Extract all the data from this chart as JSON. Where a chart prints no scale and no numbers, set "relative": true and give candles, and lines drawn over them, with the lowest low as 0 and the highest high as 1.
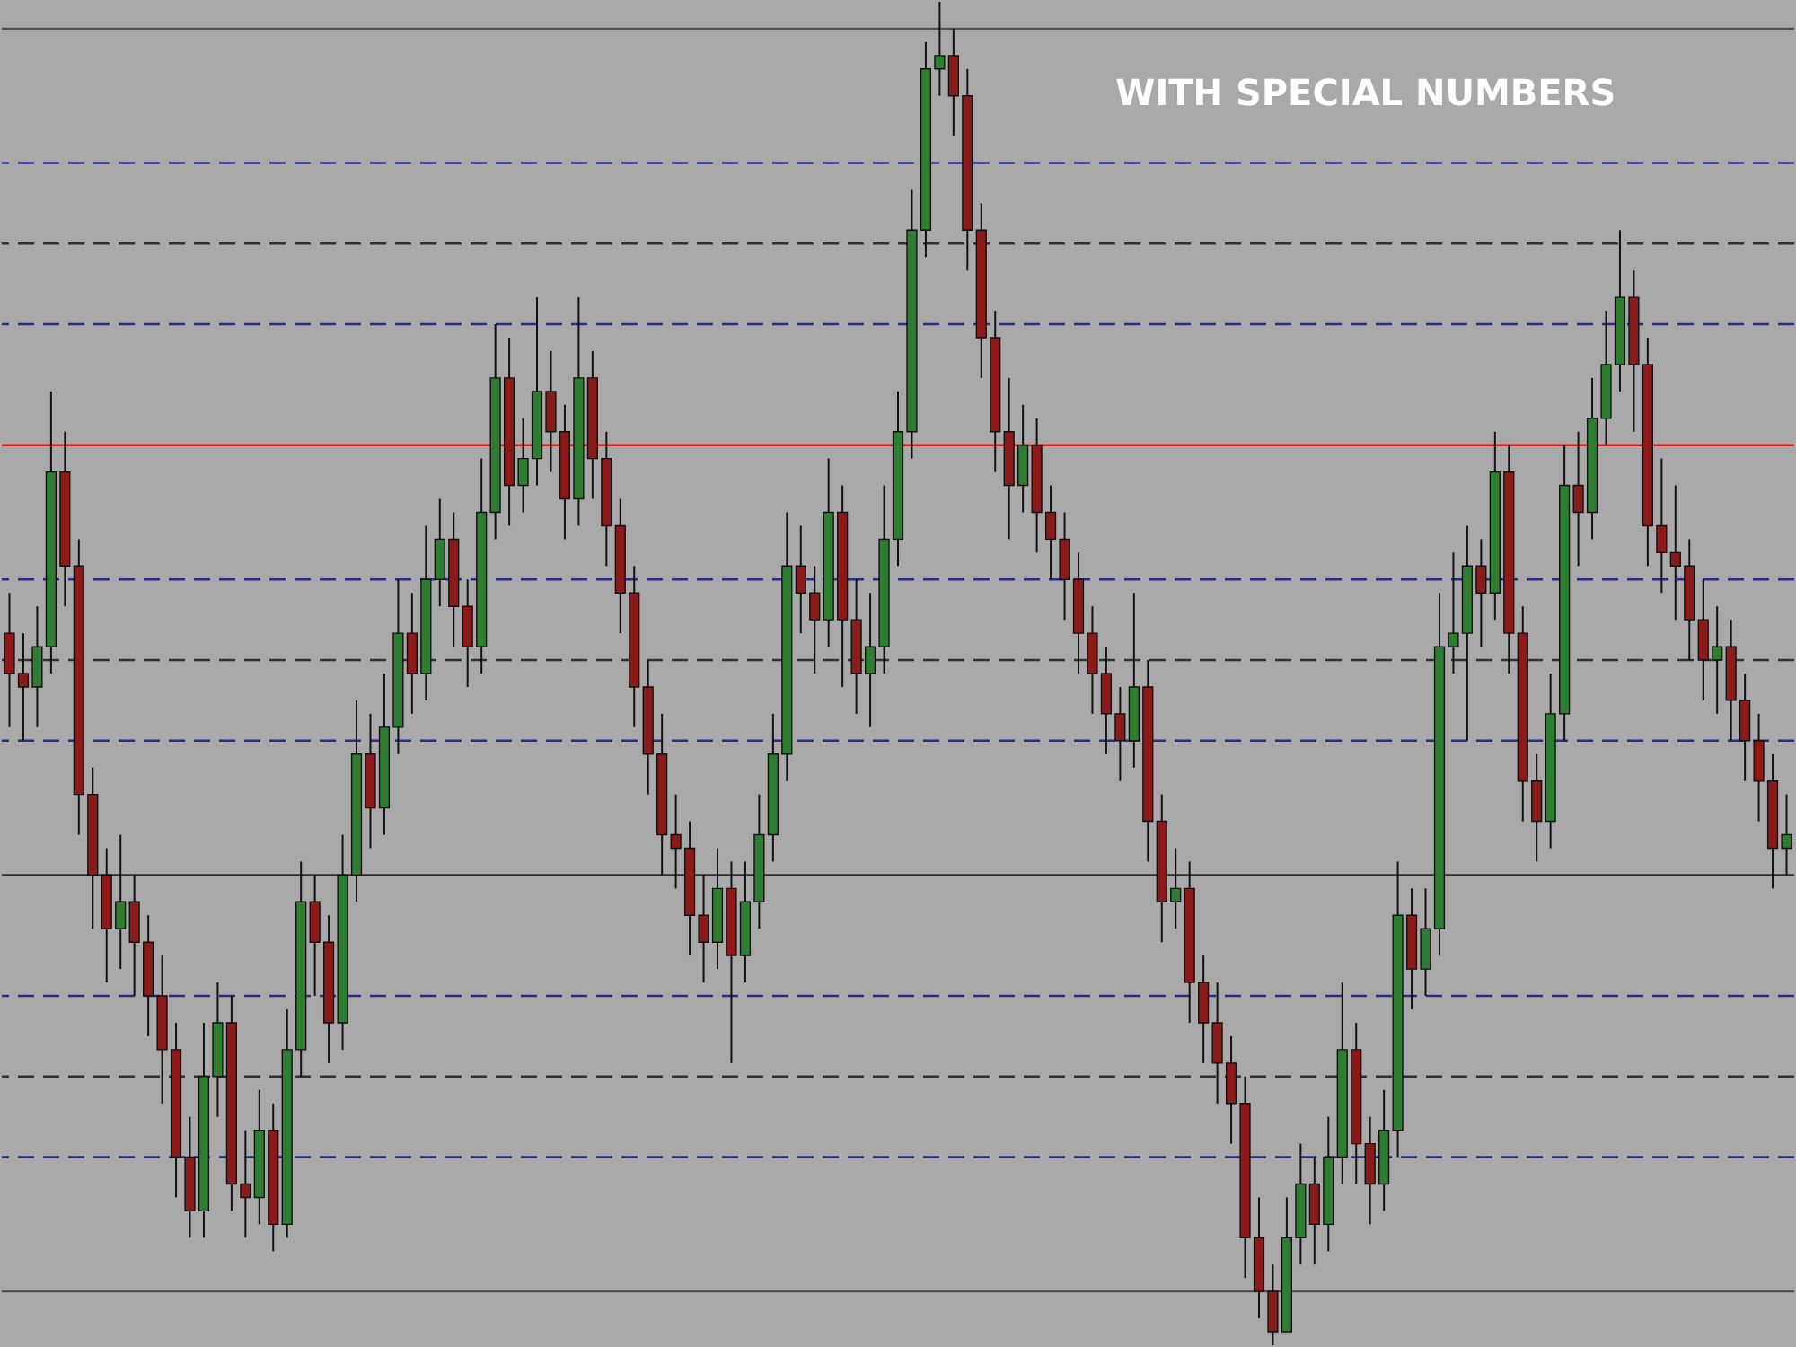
{
  "chart_data": {
    "type": "candlestick",
    "title": "WITH SPECIAL NUMBERS",
    "relative": true,
    "categories": [
      null,
      null,
      null,
      null,
      null,
      null,
      null,
      null,
      null,
      null,
      null,
      null,
      null,
      null,
      null,
      null,
      null,
      null,
      null,
      null,
      null,
      null,
      null,
      null,
      null,
      null,
      null,
      null,
      null,
      null,
      null,
      null,
      null,
      null,
      null,
      null,
      null,
      null,
      null,
      null,
      null,
      null,
      null,
      null,
      null,
      null,
      null,
      null,
      null,
      null,
      null,
      null,
      null,
      null,
      null,
      null,
      null,
      null,
      null,
      null,
      null,
      null,
      null,
      null,
      null,
      null,
      null,
      null,
      null,
      null,
      null,
      null,
      null,
      null,
      null,
      null,
      null,
      null,
      null,
      null,
      null,
      null,
      null,
      null,
      null,
      null,
      null,
      null,
      null,
      null,
      null,
      null,
      null,
      null,
      null,
      null,
      null,
      null,
      null,
      null,
      null,
      null,
      null,
      null,
      null,
      null,
      null,
      null,
      null,
      null,
      null,
      null,
      null,
      null,
      null,
      null,
      null,
      null,
      null,
      null,
      null,
      null,
      null,
      null,
      null,
      null,
      null,
      null,
      null
    ],
    "ohlc": [
      [
        0.53,
        0.56,
        0.46,
        0.5
      ],
      [
        0.5,
        0.53,
        0.45,
        0.49
      ],
      [
        0.49,
        0.55,
        0.46,
        0.52
      ],
      [
        0.52,
        0.71,
        0.5,
        0.65
      ],
      [
        0.65,
        0.68,
        0.55,
        0.58
      ],
      [
        0.58,
        0.6,
        0.38,
        0.41
      ],
      [
        0.41,
        0.43,
        0.31,
        0.35
      ],
      [
        0.35,
        0.37,
        0.27,
        0.31
      ],
      [
        0.31,
        0.38,
        0.28,
        0.33
      ],
      [
        0.33,
        0.35,
        0.26,
        0.3
      ],
      [
        0.3,
        0.32,
        0.23,
        0.26
      ],
      [
        0.26,
        0.29,
        0.18,
        0.22
      ],
      [
        0.22,
        0.24,
        0.11,
        0.14
      ],
      [
        0.14,
        0.17,
        0.08,
        0.1
      ],
      [
        0.1,
        0.24,
        0.08,
        0.2
      ],
      [
        0.2,
        0.27,
        0.17,
        0.24
      ],
      [
        0.24,
        0.26,
        0.1,
        0.12
      ],
      [
        0.12,
        0.16,
        0.08,
        0.11
      ],
      [
        0.11,
        0.19,
        0.09,
        0.16
      ],
      [
        0.16,
        0.18,
        0.07,
        0.09
      ],
      [
        0.09,
        0.25,
        0.08,
        0.22
      ],
      [
        0.22,
        0.36,
        0.2,
        0.33
      ],
      [
        0.33,
        0.35,
        0.26,
        0.3
      ],
      [
        0.3,
        0.32,
        0.21,
        0.24
      ],
      [
        0.24,
        0.38,
        0.22,
        0.35
      ],
      [
        0.35,
        0.48,
        0.33,
        0.44
      ],
      [
        0.44,
        0.47,
        0.37,
        0.4
      ],
      [
        0.4,
        0.5,
        0.38,
        0.46
      ],
      [
        0.46,
        0.57,
        0.44,
        0.53
      ],
      [
        0.53,
        0.56,
        0.47,
        0.5
      ],
      [
        0.5,
        0.61,
        0.48,
        0.57
      ],
      [
        0.57,
        0.63,
        0.55,
        0.6
      ],
      [
        0.6,
        0.62,
        0.52,
        0.55
      ],
      [
        0.55,
        0.57,
        0.49,
        0.52
      ],
      [
        0.52,
        0.66,
        0.5,
        0.62
      ],
      [
        0.62,
        0.76,
        0.6,
        0.72
      ],
      [
        0.72,
        0.75,
        0.61,
        0.64
      ],
      [
        0.64,
        0.69,
        0.62,
        0.66
      ],
      [
        0.66,
        0.78,
        0.64,
        0.71
      ],
      [
        0.71,
        0.74,
        0.65,
        0.68
      ],
      [
        0.68,
        0.7,
        0.6,
        0.63
      ],
      [
        0.63,
        0.78,
        0.61,
        0.72
      ],
      [
        0.72,
        0.74,
        0.63,
        0.66
      ],
      [
        0.66,
        0.68,
        0.58,
        0.61
      ],
      [
        0.61,
        0.63,
        0.53,
        0.56
      ],
      [
        0.56,
        0.58,
        0.46,
        0.49
      ],
      [
        0.49,
        0.51,
        0.41,
        0.44
      ],
      [
        0.44,
        0.47,
        0.35,
        0.38
      ],
      [
        0.38,
        0.41,
        0.34,
        0.37
      ],
      [
        0.37,
        0.39,
        0.29,
        0.32
      ],
      [
        0.32,
        0.35,
        0.27,
        0.3
      ],
      [
        0.3,
        0.37,
        0.28,
        0.34
      ],
      [
        0.34,
        0.36,
        0.21,
        0.29
      ],
      [
        0.29,
        0.36,
        0.27,
        0.33
      ],
      [
        0.33,
        0.41,
        0.31,
        0.38
      ],
      [
        0.38,
        0.47,
        0.36,
        0.44
      ],
      [
        0.44,
        0.62,
        0.42,
        0.58
      ],
      [
        0.58,
        0.61,
        0.53,
        0.56
      ],
      [
        0.56,
        0.58,
        0.5,
        0.54
      ],
      [
        0.54,
        0.66,
        0.52,
        0.62
      ],
      [
        0.62,
        0.64,
        0.49,
        0.54
      ],
      [
        0.54,
        0.57,
        0.47,
        0.5
      ],
      [
        0.5,
        0.56,
        0.46,
        0.52
      ],
      [
        0.52,
        0.64,
        0.5,
        0.6
      ],
      [
        0.6,
        0.71,
        0.58,
        0.68
      ],
      [
        0.68,
        0.86,
        0.66,
        0.83
      ],
      [
        0.83,
        0.97,
        0.81,
        0.95
      ],
      [
        0.95,
        1,
        0.93,
        0.96
      ],
      [
        0.96,
        0.98,
        0.9,
        0.93
      ],
      [
        0.93,
        0.95,
        0.8,
        0.83
      ],
      [
        0.83,
        0.85,
        0.72,
        0.75
      ],
      [
        0.75,
        0.77,
        0.65,
        0.68
      ],
      [
        0.68,
        0.72,
        0.6,
        0.64
      ],
      [
        0.64,
        0.7,
        0.62,
        0.67
      ],
      [
        0.67,
        0.69,
        0.59,
        0.62
      ],
      [
        0.62,
        0.64,
        0.57,
        0.6
      ],
      [
        0.6,
        0.62,
        0.54,
        0.57
      ],
      [
        0.57,
        0.59,
        0.5,
        0.53
      ],
      [
        0.53,
        0.55,
        0.47,
        0.5
      ],
      [
        0.5,
        0.52,
        0.44,
        0.47
      ],
      [
        0.47,
        0.49,
        0.42,
        0.45
      ],
      [
        0.45,
        0.56,
        0.43,
        0.49
      ],
      [
        0.49,
        0.51,
        0.36,
        0.39
      ],
      [
        0.39,
        0.41,
        0.3,
        0.33
      ],
      [
        0.33,
        0.37,
        0.31,
        0.34
      ],
      [
        0.34,
        0.36,
        0.24,
        0.27
      ],
      [
        0.27,
        0.29,
        0.21,
        0.24
      ],
      [
        0.24,
        0.27,
        0.18,
        0.21
      ],
      [
        0.21,
        0.23,
        0.15,
        0.18
      ],
      [
        0.18,
        0.2,
        0.05,
        0.08
      ],
      [
        0.08,
        0.11,
        0.02,
        0.04
      ],
      [
        0.04,
        0.06,
        0,
        0.01
      ],
      [
        0.01,
        0.11,
        0.01,
        0.08
      ],
      [
        0.08,
        0.15,
        0.06,
        0.12
      ],
      [
        0.12,
        0.14,
        0.06,
        0.09
      ],
      [
        0.09,
        0.17,
        0.07,
        0.14
      ],
      [
        0.14,
        0.27,
        0.12,
        0.22
      ],
      [
        0.22,
        0.24,
        0.12,
        0.15
      ],
      [
        0.15,
        0.17,
        0.09,
        0.12
      ],
      [
        0.12,
        0.19,
        0.1,
        0.16
      ],
      [
        0.16,
        0.36,
        0.14,
        0.32
      ],
      [
        0.32,
        0.34,
        0.25,
        0.28
      ],
      [
        0.28,
        0.34,
        0.26,
        0.31
      ],
      [
        0.31,
        0.56,
        0.29,
        0.52
      ],
      [
        0.52,
        0.59,
        0.5,
        0.53
      ],
      [
        0.53,
        0.61,
        0.45,
        0.58
      ],
      [
        0.58,
        0.6,
        0.52,
        0.56
      ],
      [
        0.56,
        0.68,
        0.54,
        0.65
      ],
      [
        0.65,
        0.67,
        0.5,
        0.53
      ],
      [
        0.53,
        0.55,
        0.39,
        0.42
      ],
      [
        0.42,
        0.44,
        0.36,
        0.39
      ],
      [
        0.39,
        0.5,
        0.37,
        0.47
      ],
      [
        0.47,
        0.67,
        0.45,
        0.64
      ],
      [
        0.64,
        0.68,
        0.58,
        0.62
      ],
      [
        0.62,
        0.72,
        0.6,
        0.69
      ],
      [
        0.69,
        0.77,
        0.67,
        0.73
      ],
      [
        0.73,
        0.83,
        0.71,
        0.78
      ],
      [
        0.78,
        0.8,
        0.68,
        0.73
      ],
      [
        0.73,
        0.75,
        0.58,
        0.61
      ],
      [
        0.61,
        0.66,
        0.56,
        0.59
      ],
      [
        0.59,
        0.64,
        0.54,
        0.58
      ],
      [
        0.58,
        0.6,
        0.51,
        0.54
      ],
      [
        0.54,
        0.57,
        0.48,
        0.51
      ],
      [
        0.51,
        0.55,
        0.47,
        0.52
      ],
      [
        0.52,
        0.54,
        0.45,
        0.48
      ],
      [
        0.48,
        0.5,
        0.42,
        0.45
      ],
      [
        0.45,
        0.47,
        0.39,
        0.42
      ],
      [
        0.42,
        0.44,
        0.34,
        0.37
      ],
      [
        0.37,
        0.41,
        0.35,
        0.38
      ]
    ],
    "colors": [
      "#8b1a1a",
      "#8b1a1a",
      "#2f7d32",
      "#2f7d32",
      "#8b1a1a",
      "#8b1a1a",
      "#8b1a1a",
      "#8b1a1a",
      "#2f7d32",
      "#8b1a1a",
      "#8b1a1a",
      "#8b1a1a",
      "#8b1a1a",
      "#8b1a1a",
      "#2f7d32",
      "#2f7d32",
      "#8b1a1a",
      "#8b1a1a",
      "#2f7d32",
      "#8b1a1a",
      "#2f7d32",
      "#2f7d32",
      "#8b1a1a",
      "#8b1a1a",
      "#2f7d32",
      "#2f7d32",
      "#8b1a1a",
      "#2f7d32",
      "#2f7d32",
      "#8b1a1a",
      "#2f7d32",
      "#2f7d32",
      "#8b1a1a",
      "#8b1a1a",
      "#2f7d32",
      "#2f7d32",
      "#8b1a1a",
      "#2f7d32",
      "#2f7d32",
      "#8b1a1a",
      "#8b1a1a",
      "#2f7d32",
      "#8b1a1a",
      "#8b1a1a",
      "#8b1a1a",
      "#8b1a1a",
      "#8b1a1a",
      "#8b1a1a",
      "#8b1a1a",
      "#8b1a1a",
      "#8b1a1a",
      "#2f7d32",
      "#8b1a1a",
      "#2f7d32",
      "#2f7d32",
      "#2f7d32",
      "#2f7d32",
      "#8b1a1a",
      "#8b1a1a",
      "#2f7d32",
      "#8b1a1a",
      "#8b1a1a",
      "#2f7d32",
      "#2f7d32",
      "#2f7d32",
      "#2f7d32",
      "#2f7d32",
      "#2f7d32",
      "#8b1a1a",
      "#8b1a1a",
      "#8b1a1a",
      "#8b1a1a",
      "#8b1a1a",
      "#2f7d32",
      "#8b1a1a",
      "#8b1a1a",
      "#8b1a1a",
      "#8b1a1a",
      "#8b1a1a",
      "#8b1a1a",
      "#8b1a1a",
      "#2f7d32",
      "#8b1a1a",
      "#8b1a1a",
      "#2f7d32",
      "#8b1a1a",
      "#8b1a1a",
      "#8b1a1a",
      "#8b1a1a",
      "#8b1a1a",
      "#8b1a1a",
      "#8b1a1a",
      "#2f7d32",
      "#2f7d32",
      "#8b1a1a",
      "#2f7d32",
      "#2f7d32",
      "#8b1a1a",
      "#8b1a1a",
      "#2f7d32",
      "#2f7d32",
      "#8b1a1a",
      "#2f7d32",
      "#2f7d32",
      "#2f7d32",
      "#2f7d32",
      "#8b1a1a",
      "#2f7d32",
      "#8b1a1a",
      "#8b1a1a",
      "#8b1a1a",
      "#2f7d32",
      "#2f7d32",
      "#8b1a1a",
      "#2f7d32",
      "#2f7d32",
      "#2f7d32",
      "#8b1a1a",
      "#8b1a1a",
      "#8b1a1a",
      "#8b1a1a",
      "#8b1a1a",
      "#8b1a1a",
      "#2f7d32",
      "#8b1a1a",
      "#8b1a1a",
      "#8b1a1a",
      "#8b1a1a",
      "#2f7d32"
    ],
    "ref_lines": [
      {
        "axis": "y",
        "value": 0.98,
        "color": "#505050",
        "line_style": "solid"
      },
      {
        "axis": "y",
        "value": 0.88,
        "color": "#2a2a8a",
        "line_style": "dashed"
      },
      {
        "axis": "y",
        "value": 0.82,
        "color": "#303030",
        "line_style": "dashed"
      },
      {
        "axis": "y",
        "value": 0.76,
        "color": "#2a2a8a",
        "line_style": "dashed"
      },
      {
        "axis": "y",
        "value": 0.67,
        "color": "#d02020",
        "line_style": "solid"
      },
      {
        "axis": "y",
        "value": 0.57,
        "color": "#2a2a8a",
        "line_style": "dashed"
      },
      {
        "axis": "y",
        "value": 0.51,
        "color": "#303030",
        "line_style": "dashed"
      },
      {
        "axis": "y",
        "value": 0.45,
        "color": "#2a2a8a",
        "line_style": "dashed"
      },
      {
        "axis": "y",
        "value": 0.35,
        "color": "#303030",
        "line_style": "solid"
      },
      {
        "axis": "y",
        "value": 0.26,
        "color": "#2a2a8a",
        "line_style": "dashed"
      },
      {
        "axis": "y",
        "value": 0.2,
        "color": "#303030",
        "line_style": "dashed"
      },
      {
        "axis": "y",
        "value": 0.14,
        "color": "#2a2a8a",
        "line_style": "dashed"
      },
      {
        "axis": "y",
        "value": 0.04,
        "color": "#505050",
        "line_style": "solid"
      }
    ]
  }
}
